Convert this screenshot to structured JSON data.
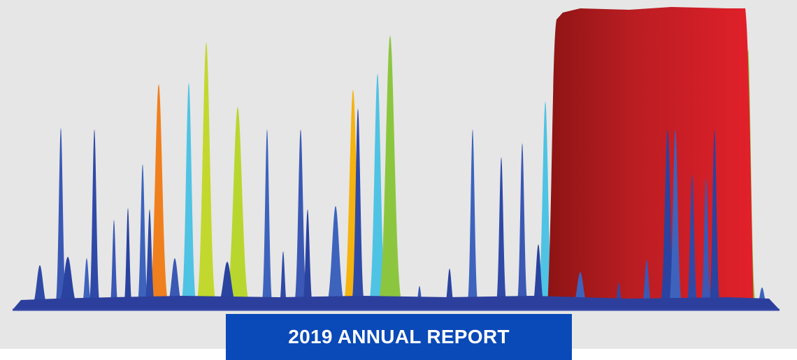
{
  "banner": {
    "title": "2019 ANNUAL REPORT"
  }
}
